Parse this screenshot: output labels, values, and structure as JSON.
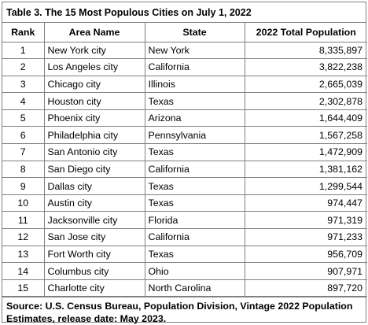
{
  "title": "Table 3. The 15 Most Populous Cities on July 1, 2022",
  "headers": {
    "rank": "Rank",
    "area": "Area Name",
    "state": "State",
    "population": "2022 Total Population"
  },
  "rows": [
    {
      "rank": "1",
      "area": "New York city",
      "state": "New York",
      "population": "8,335,897"
    },
    {
      "rank": "2",
      "area": "Los Angeles city",
      "state": "California",
      "population": "3,822,238"
    },
    {
      "rank": "3",
      "area": "Chicago city",
      "state": "Illinois",
      "population": "2,665,039"
    },
    {
      "rank": "4",
      "area": "Houston city",
      "state": "Texas",
      "population": "2,302,878"
    },
    {
      "rank": "5",
      "area": "Phoenix city",
      "state": "Arizona",
      "population": "1,644,409"
    },
    {
      "rank": "6",
      "area": "Philadelphia city",
      "state": "Pennsylvania",
      "population": "1,567,258"
    },
    {
      "rank": "7",
      "area": "San Antonio city",
      "state": "Texas",
      "population": "1,472,909"
    },
    {
      "rank": "8",
      "area": "San Diego city",
      "state": "California",
      "population": "1,381,162"
    },
    {
      "rank": "9",
      "area": "Dallas city",
      "state": "Texas",
      "population": "1,299,544"
    },
    {
      "rank": "10",
      "area": "Austin city",
      "state": "Texas",
      "population": "974,447"
    },
    {
      "rank": "11",
      "area": "Jacksonville city",
      "state": "Florida",
      "population": "971,319"
    },
    {
      "rank": "12",
      "area": "San Jose city",
      "state": "California",
      "population": "971,233"
    },
    {
      "rank": "13",
      "area": "Fort Worth city",
      "state": "Texas",
      "population": "956,709"
    },
    {
      "rank": "14",
      "area": "Columbus city",
      "state": "Ohio",
      "population": "907,971"
    },
    {
      "rank": "15",
      "area": "Charlotte city",
      "state": "North Carolina",
      "population": "897,720"
    }
  ],
  "source": "Source: U.S. Census Bureau, Population Division, Vintage 2022 Population Estimates, release date: May 2023."
}
